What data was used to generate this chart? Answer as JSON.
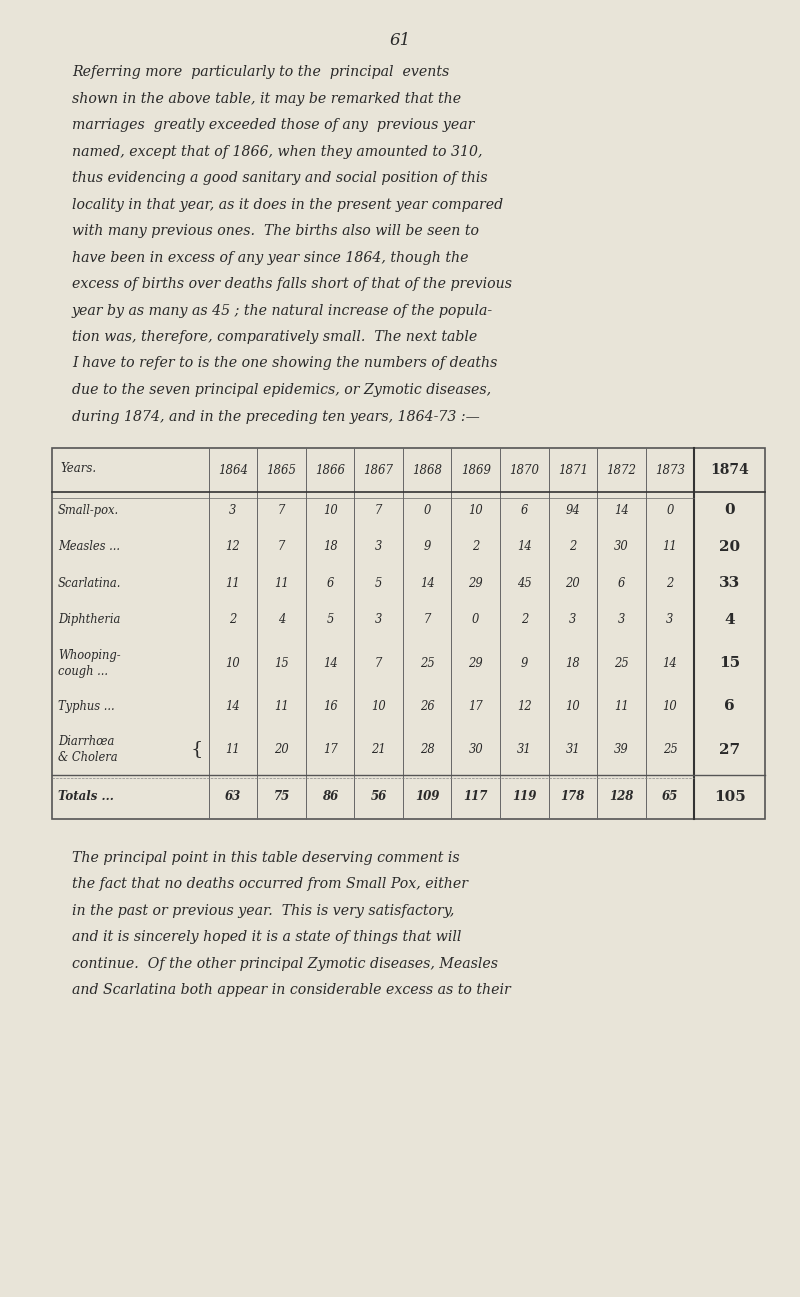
{
  "page_number": "61",
  "bg_color": "#e8e4d8",
  "text_color": "#2a2a2a",
  "para1": "Referring more  particularly to the principal events shown in the above table, it may be remarked that the marriages  greatly exceeded those of any previous year named, except that of 1866, when they amounted to 310, thus evidencing a good sanitary and social position of this locality in that year, as it does in the present year compared with many previous ones.  The births also will be seen to have been in excess of any year since 1864, though the excess of births over deaths falls short of that of the previous year by as many as 45 ; the natural increase of the popula-tion was, therefore, comparatively small.  The next table I have to refer to is the one showing the numbers of deaths due to the seven principal epidemics, or Zymotic diseases, during 1874, and in the preceding ten years, 1864-73 :—",
  "para2": "The principal point in this table deserving comment is the fact that no deaths occurred from Small Pox, either in the past or previous year.  This is very satisfactory, and it is sincerely hoped it is a state of things that will continue.  Of the other principal Zymotic diseases, Measles and Scarlatina both appear in considerable excess as to their",
  "table": {
    "headers": [
      "Years.",
      "1864",
      "1865",
      "1866",
      "1867",
      "1868",
      "1869",
      "1870",
      "1871",
      "1872",
      "1873",
      "1874"
    ],
    "rows": [
      [
        "Small-pox.",
        "3",
        "7",
        "10",
        "7",
        "0",
        "10",
        "6",
        "94",
        "14",
        "0",
        "0"
      ],
      [
        "Measles ...",
        "12",
        "7",
        "18",
        "3",
        "9",
        "2",
        "14",
        "2",
        "30",
        "11",
        "20"
      ],
      [
        "Scarlatina.",
        "11",
        "11",
        "6",
        "5",
        "14",
        "29",
        "45",
        "20",
        "6",
        "2",
        "33"
      ],
      [
        "Diphtheria",
        "2",
        "4",
        "5",
        "3",
        "7",
        "0",
        "2",
        "3",
        "3",
        "3",
        "4"
      ],
      [
        "Whooping-\ncough ...",
        "10",
        "15",
        "14",
        "7",
        "25",
        "29",
        "9",
        "18",
        "25",
        "14",
        "15"
      ],
      [
        "Typhus ...",
        "14",
        "11",
        "16",
        "10",
        "26",
        "17",
        "12",
        "10",
        "11",
        "10",
        "6"
      ],
      [
        "Diarrhœa\n& Cholera",
        "11",
        "20",
        "17",
        "21",
        "28",
        "30",
        "31",
        "31",
        "39",
        "25",
        "27"
      ],
      [
        "Totals ...",
        "63",
        "75",
        "86",
        "56",
        "109",
        "117",
        "119",
        "178",
        "128",
        "65",
        "105"
      ]
    ],
    "col_widths": [
      1.45,
      0.48,
      0.48,
      0.48,
      0.48,
      0.48,
      0.48,
      0.48,
      0.48,
      0.48,
      0.48,
      0.62
    ],
    "last_col_bold": true,
    "totals_row_index": 7
  }
}
